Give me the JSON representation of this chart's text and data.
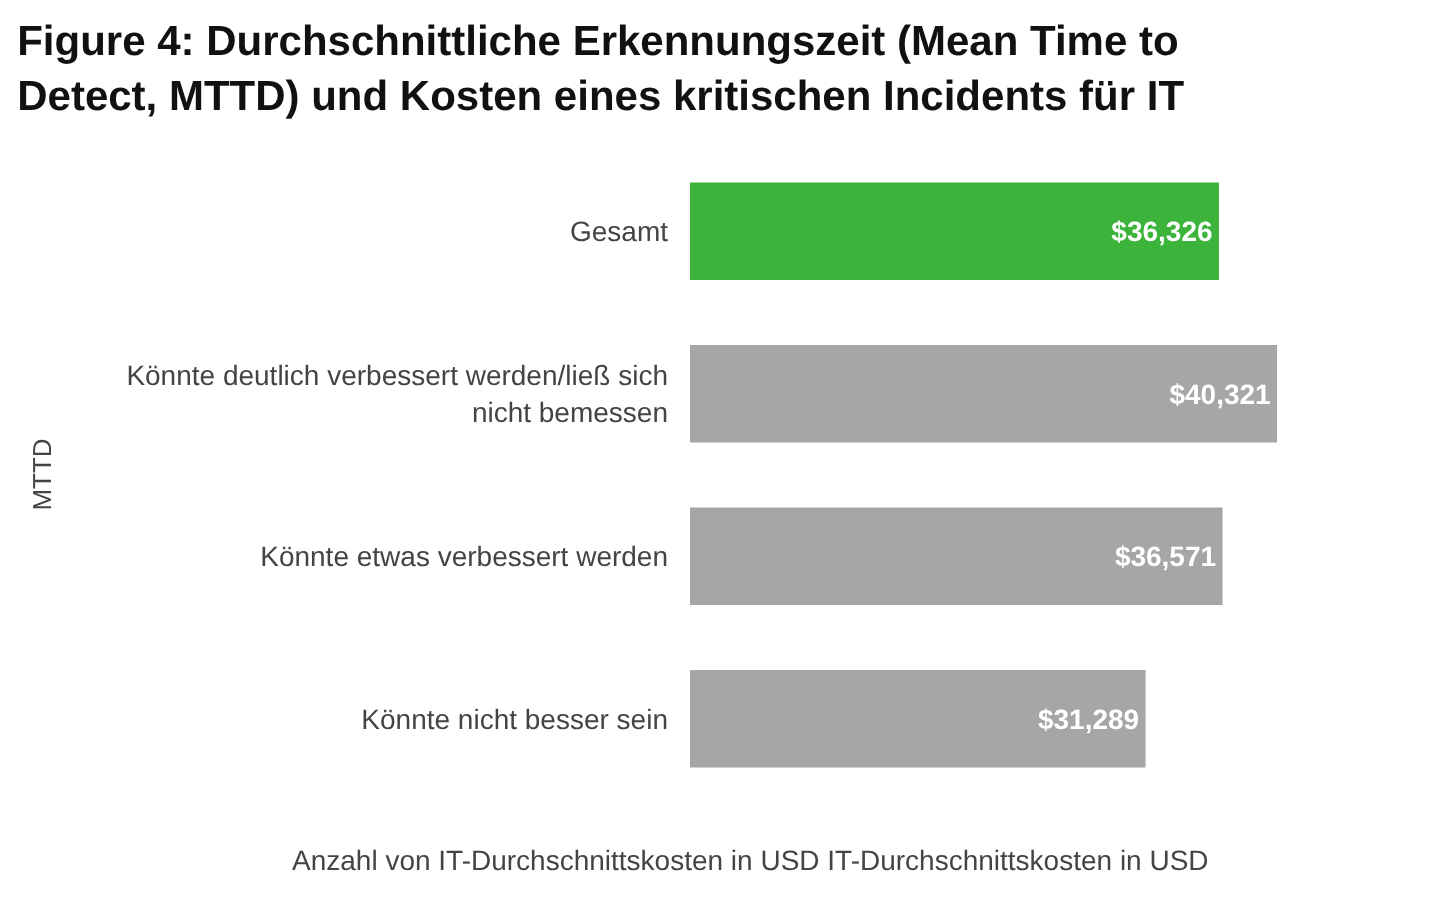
{
  "chart_data": {
    "type": "bar",
    "orientation": "horizontal",
    "title": "Figure 4: Durchschnittliche Erkennungszeit (Mean Time to Detect, MTTD) und Kosten eines kritischen Incidents für IT",
    "xlabel": "Anzahl von IT-Durchschnittskosten in USD IT-Durchschnittskosten in USD",
    "ylabel": "MTTD",
    "categories": [
      "Gesamt",
      "Könnte deutlich verbessert werden/ließ sich nicht bemessen",
      "Könnte etwas verbessert werden",
      "Könnte nicht besser sein"
    ],
    "values": [
      36326,
      40321,
      36571,
      31289
    ],
    "value_labels": [
      "$36,326",
      "$40,321",
      "$36,571",
      "$31,289"
    ],
    "colors": [
      "#3cb43c",
      "#a6a6a6",
      "#a6a6a6",
      "#a6a6a6"
    ]
  }
}
